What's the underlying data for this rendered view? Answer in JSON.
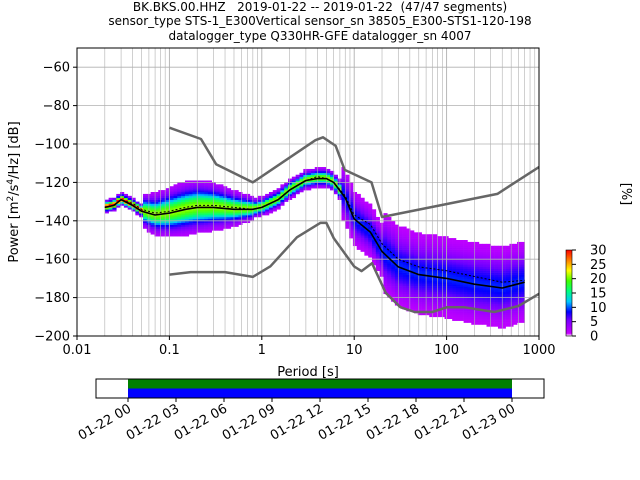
{
  "title": {
    "line1": "BK.BKS.00.HHZ   2019-01-22 -- 2019-01-22  (47/47 segments)",
    "line2": "sensor_type STS-1_E300Vertical sensor_sn 38505_E300-STS1-120-198",
    "line3": "datalogger_type Q330HR-GFE datalogger_sn 4007"
  },
  "colors": {
    "model_curves": "#666666",
    "mean_curve": "#000000",
    "grid": "#b0b0b0",
    "coverage_green": "#008000",
    "coverage_blue": "#0000ff"
  },
  "chart_data": [
    {
      "type": "heatmap",
      "xlabel": "Period [s]",
      "ylabel": "Power [$m^2/s^4/Hz$] [dB]",
      "x_scale": "log",
      "xlim": [
        0.01,
        1000
      ],
      "ylim": [
        -200,
        -50
      ],
      "grid": true,
      "x_tick_labels": [
        "0.01",
        "0.1",
        "1",
        "10",
        "100",
        "1000"
      ],
      "y_tick_labels": [
        "−60",
        "−80",
        "−100",
        "−120",
        "−140",
        "−160",
        "−180",
        "−200"
      ],
      "colorbar": {
        "label": "[%]",
        "ticks": [
          "0",
          "5",
          "10",
          "15",
          "20",
          "25",
          "30"
        ],
        "range": [
          0,
          30
        ],
        "colormap": "pqlx"
      },
      "series": [
        {
          "kind": "high_noise_model",
          "x": [
            0.1,
            0.22,
            0.32,
            0.8,
            3.8,
            4.6,
            6.3,
            7.9,
            15.4,
            20,
            354.8,
            1000
          ],
          "y": [
            -91.5,
            -97.4,
            -110.5,
            -120,
            -98,
            -96.5,
            -101,
            -113.5,
            -120,
            -138,
            -126,
            -112
          ]
        },
        {
          "kind": "low_noise_model",
          "x": [
            0.1,
            0.17,
            0.4,
            0.8,
            1.24,
            2.4,
            4.3,
            5,
            6,
            10,
            12,
            15.6,
            21.9,
            31.6,
            45,
            70,
            101,
            154,
            328,
            600,
            1000
          ],
          "y": [
            -168,
            -166.7,
            -166.7,
            -169.2,
            -163.7,
            -148.6,
            -141.1,
            -141.1,
            -149,
            -163.8,
            -166.2,
            -162.1,
            -177.5,
            -185,
            -187.5,
            -187.5,
            -185,
            -185,
            -187.5,
            -184.4,
            -178
          ]
        },
        {
          "kind": "mean",
          "x": [
            0.02,
            0.025,
            0.03,
            0.04,
            0.05,
            0.07,
            0.1,
            0.15,
            0.2,
            0.3,
            0.5,
            0.8,
            1,
            1.5,
            2,
            3,
            4,
            5,
            6,
            8,
            10,
            15,
            20,
            30,
            50,
            100,
            200,
            400,
            700
          ],
          "y": [
            -133,
            -132,
            -129,
            -132,
            -135,
            -137,
            -136,
            -134,
            -133,
            -133,
            -134,
            -134,
            -133,
            -129,
            -124,
            -119,
            -118,
            -118,
            -120,
            -128,
            -139,
            -146,
            -156,
            -164,
            -168,
            -170,
            -173,
            -175,
            -172
          ]
        },
        {
          "kind": "mode",
          "x": [
            0.02,
            0.025,
            0.03,
            0.04,
            0.05,
            0.07,
            0.1,
            0.15,
            0.2,
            0.3,
            0.5,
            0.8,
            1,
            1.5,
            2,
            3,
            4,
            5,
            6,
            8,
            10,
            15,
            20,
            30,
            50,
            100,
            200,
            400,
            700
          ],
          "y": [
            -133,
            -132,
            -129,
            -131,
            -134,
            -136,
            -135,
            -133,
            -132,
            -132,
            -133,
            -134,
            -133,
            -129,
            -124,
            -119,
            -117,
            -118,
            -120,
            -127,
            -137,
            -142,
            -152,
            -160,
            -164,
            -166,
            -169,
            -172,
            -171
          ]
        }
      ]
    },
    {
      "type": "bar",
      "kind": "data_coverage",
      "x_tick_labels": [
        "01-22 00",
        "01-22 03",
        "01-22 06",
        "01-22 09",
        "01-22 12",
        "01-22 15",
        "01-22 18",
        "01-22 21",
        "01-23 00"
      ],
      "xlim_hours": [
        -2,
        26
      ],
      "segments": [
        {
          "start_hour": 0,
          "end_hour": 24,
          "color": "green"
        },
        {
          "start_hour": 0,
          "end_hour": 24,
          "color": "blue"
        }
      ]
    }
  ]
}
